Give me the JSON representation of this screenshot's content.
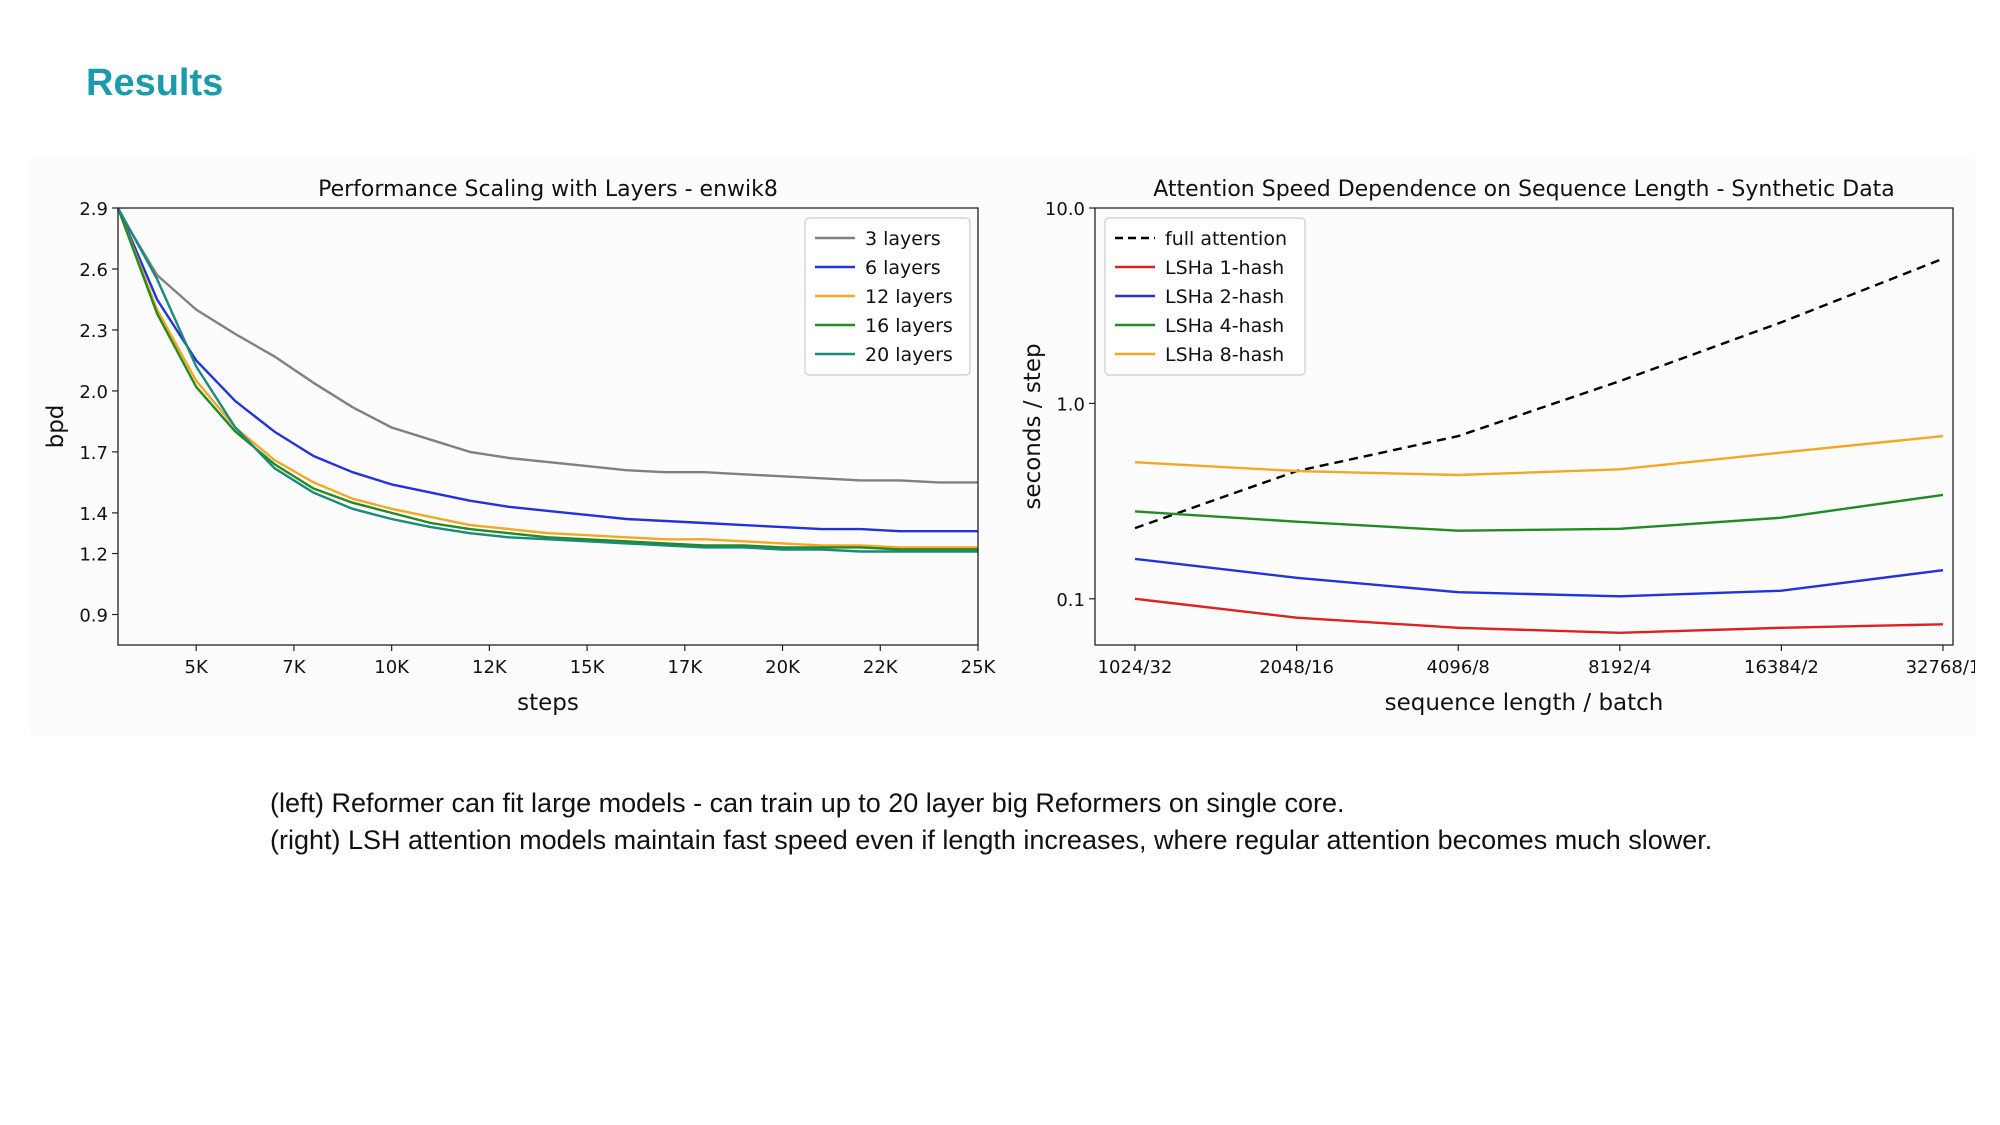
{
  "slide": {
    "title": "Results",
    "title_color": "#1a9bad",
    "caption": [
      "(left) Reformer can fit large models - can train up to 20 layer big Reformers on single core.",
      "(right) LSH attention models maintain fast speed even if length increases, where regular attention becomes much slower."
    ]
  },
  "chart_data": [
    {
      "type": "line",
      "title": "Performance Scaling with Layers - enwik8",
      "xlabel": "steps",
      "ylabel": "bpd",
      "xlim": [
        3000,
        25000
      ],
      "ylim": [
        0.75,
        2.9
      ],
      "x_ticks": [
        5000,
        7500,
        10000,
        12500,
        15000,
        17500,
        20000,
        22500,
        25000
      ],
      "x_tick_labels": [
        "5K",
        "7K",
        "10K",
        "12K",
        "15K",
        "17K",
        "20K",
        "22K",
        "25K"
      ],
      "y_ticks": [
        0.9,
        1.2,
        1.4,
        1.7,
        2.0,
        2.3,
        2.6,
        2.9
      ],
      "y_tick_labels": [
        "0.9",
        "1.2",
        "1.4",
        "1.7",
        "2.0",
        "2.3",
        "2.6",
        "2.9"
      ],
      "legend_position": "top-right",
      "grid": false,
      "x": [
        3000,
        4000,
        5000,
        6000,
        7000,
        8000,
        9000,
        10000,
        11000,
        12000,
        13000,
        14000,
        15000,
        16000,
        17000,
        18000,
        19000,
        20000,
        21000,
        22000,
        23000,
        24000,
        25000
      ],
      "series": [
        {
          "name": "3 layers",
          "color": "#808080",
          "values": [
            2.89,
            2.57,
            2.4,
            2.28,
            2.17,
            2.04,
            1.92,
            1.82,
            1.76,
            1.7,
            1.67,
            1.65,
            1.63,
            1.61,
            1.6,
            1.6,
            1.59,
            1.58,
            1.57,
            1.56,
            1.56,
            1.55,
            1.55
          ]
        },
        {
          "name": "6 layers",
          "color": "#2233dd",
          "values": [
            2.9,
            2.45,
            2.15,
            1.95,
            1.8,
            1.68,
            1.6,
            1.54,
            1.5,
            1.46,
            1.43,
            1.41,
            1.39,
            1.37,
            1.36,
            1.35,
            1.34,
            1.33,
            1.32,
            1.32,
            1.31,
            1.31,
            1.31
          ]
        },
        {
          "name": "12 layers",
          "color": "#f5a623",
          "values": [
            2.9,
            2.4,
            2.05,
            1.82,
            1.66,
            1.55,
            1.47,
            1.42,
            1.38,
            1.34,
            1.32,
            1.3,
            1.29,
            1.28,
            1.27,
            1.27,
            1.26,
            1.25,
            1.24,
            1.24,
            1.23,
            1.23,
            1.23
          ]
        },
        {
          "name": "16 layers",
          "color": "#228b22",
          "values": [
            2.9,
            2.38,
            2.02,
            1.8,
            1.64,
            1.52,
            1.45,
            1.4,
            1.35,
            1.32,
            1.3,
            1.28,
            1.27,
            1.26,
            1.25,
            1.24,
            1.24,
            1.23,
            1.23,
            1.23,
            1.22,
            1.22,
            1.22
          ]
        },
        {
          "name": "20 layers",
          "color": "#1a8a7a",
          "values": [
            2.9,
            2.55,
            2.12,
            1.82,
            1.62,
            1.5,
            1.42,
            1.37,
            1.33,
            1.3,
            1.28,
            1.27,
            1.26,
            1.25,
            1.24,
            1.23,
            1.23,
            1.22,
            1.22,
            1.21,
            1.21,
            1.21,
            1.21
          ]
        }
      ]
    },
    {
      "type": "line",
      "title": "Attention Speed Dependence on Sequence Length - Synthetic Data",
      "xlabel": "sequence length / batch",
      "ylabel": "seconds / step",
      "y_scale": "log",
      "ylim": [
        0.058,
        10.0
      ],
      "categories": [
        "1024/32",
        "2048/16",
        "4096/8",
        "8192/4",
        "16384/2",
        "32768/1"
      ],
      "y_ticks": [
        0.1,
        1.0,
        10.0
      ],
      "y_tick_labels": [
        "0.1",
        "1.0",
        "10.0"
      ],
      "legend_position": "top-left",
      "grid": false,
      "series": [
        {
          "name": "full attention",
          "color": "#000000",
          "dashed": true,
          "values": [
            0.23,
            0.45,
            0.68,
            1.3,
            2.6,
            5.5
          ]
        },
        {
          "name": "LSHa 1-hash",
          "color": "#e02020",
          "values": [
            0.1,
            0.08,
            0.071,
            0.067,
            0.071,
            0.074
          ]
        },
        {
          "name": "LSHa 2-hash",
          "color": "#2233dd",
          "values": [
            0.16,
            0.128,
            0.108,
            0.103,
            0.11,
            0.14
          ]
        },
        {
          "name": "LSHa 4-hash",
          "color": "#228b22",
          "values": [
            0.28,
            0.248,
            0.223,
            0.228,
            0.26,
            0.34
          ]
        },
        {
          "name": "LSHa 8-hash",
          "color": "#f5a623",
          "values": [
            0.5,
            0.45,
            0.43,
            0.46,
            0.56,
            0.68
          ]
        }
      ]
    }
  ]
}
